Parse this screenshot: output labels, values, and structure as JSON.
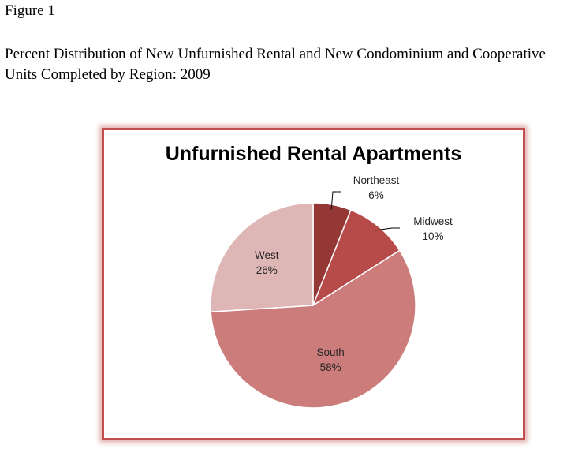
{
  "figure": {
    "label": "Figure 1",
    "caption": "Percent Distribution of New Unfurnished Rental and New Condominium and Cooperative Units Completed by Region: 2009"
  },
  "chart_data": {
    "type": "pie",
    "title": "Unfurnished Rental Apartments",
    "categories": [
      "Northeast",
      "Midwest",
      "South",
      "West"
    ],
    "values": [
      6,
      10,
      58,
      26
    ],
    "value_labels": [
      "6%",
      "10%",
      "58%",
      "26%"
    ],
    "colors": [
      "#953735",
      "#b64b49",
      "#cc7d7b",
      "#deb6b5"
    ],
    "legend": "none",
    "frame_color": "#c0504d"
  }
}
